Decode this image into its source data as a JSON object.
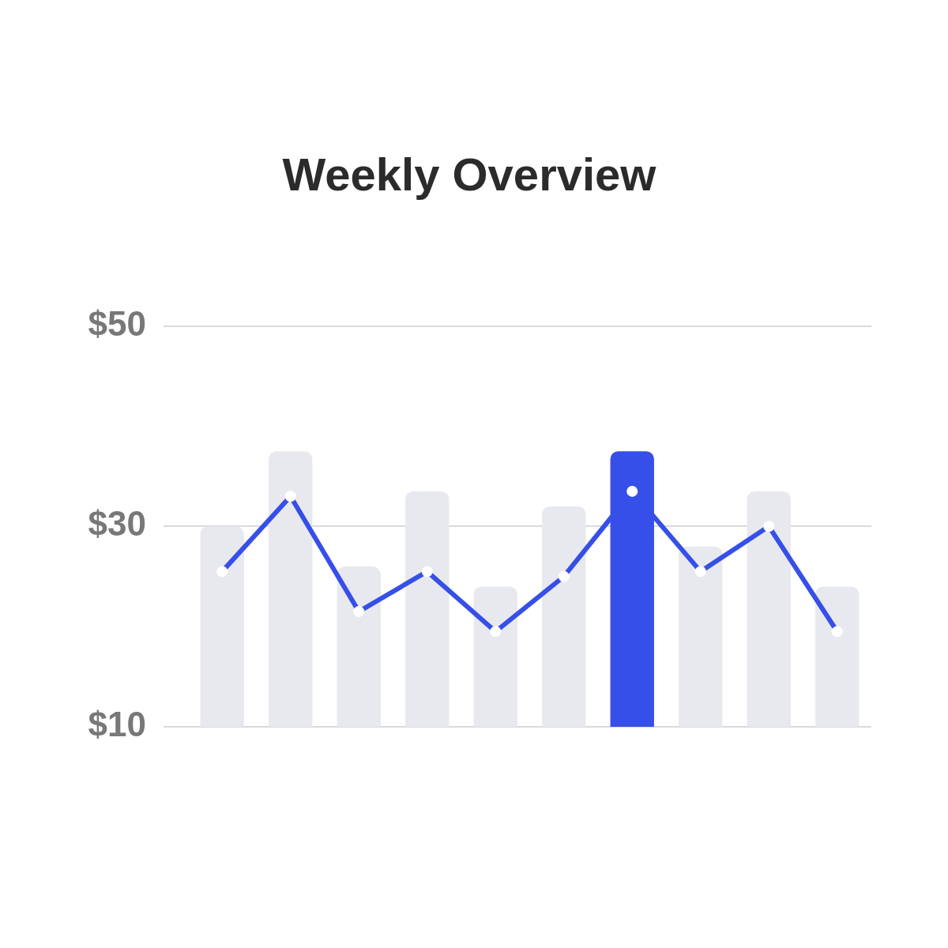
{
  "chart_data": {
    "type": "bar",
    "title": "Weekly Overview",
    "categories": [
      null,
      null,
      null,
      null,
      null,
      null,
      null,
      null,
      null,
      null
    ],
    "series": [
      {
        "colors": [
          "#e8e9ef",
          "#e8e9ef",
          "#e8e9ef",
          "#e8e9ef",
          "#e8e9ef",
          "#e8e9ef",
          "#364fe9",
          "#e8e9ef",
          "#e8e9ef",
          "#e8e9ef"
        ],
        "values": [
          30,
          37.5,
          26,
          33.5,
          24,
          32,
          37.5,
          28,
          33.5,
          24
        ]
      },
      {
        "type": "line",
        "color": "#364fe9",
        "values": [
          25.5,
          33,
          21.5,
          25.5,
          19.5,
          25,
          33.5,
          25.5,
          30,
          19.5
        ]
      }
    ],
    "ylim": [
      10,
      50
    ],
    "yticks": [
      {
        "value": 10,
        "label": "$10"
      },
      {
        "value": 30,
        "label": "$30"
      },
      {
        "value": 50,
        "label": "$50"
      }
    ],
    "grid": "y",
    "legend": false,
    "marker": "circle",
    "tick_labels": "y"
  }
}
